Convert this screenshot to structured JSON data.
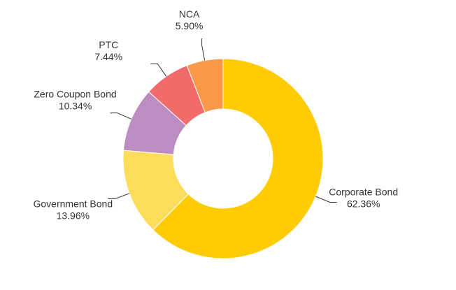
{
  "chart_data": {
    "type": "pie",
    "variant": "donut",
    "title": "",
    "legend": "none",
    "slices": [
      {
        "name": "Corporate Bond",
        "value": 62.36,
        "label": "62.36%",
        "color": "#FFCB05"
      },
      {
        "name": "Government Bond",
        "value": 13.96,
        "label": "13.96%",
        "color": "#FDDC5C"
      },
      {
        "name": "Zero Coupon Bond",
        "value": 10.34,
        "label": "10.34%",
        "color": "#BC8DC0"
      },
      {
        "name": "PTC",
        "value": 7.44,
        "label": "7.44%",
        "color": "#F26B6B"
      },
      {
        "name": "NCA",
        "value": 5.9,
        "label": "5.90%",
        "color": "#F99A4A"
      }
    ]
  }
}
